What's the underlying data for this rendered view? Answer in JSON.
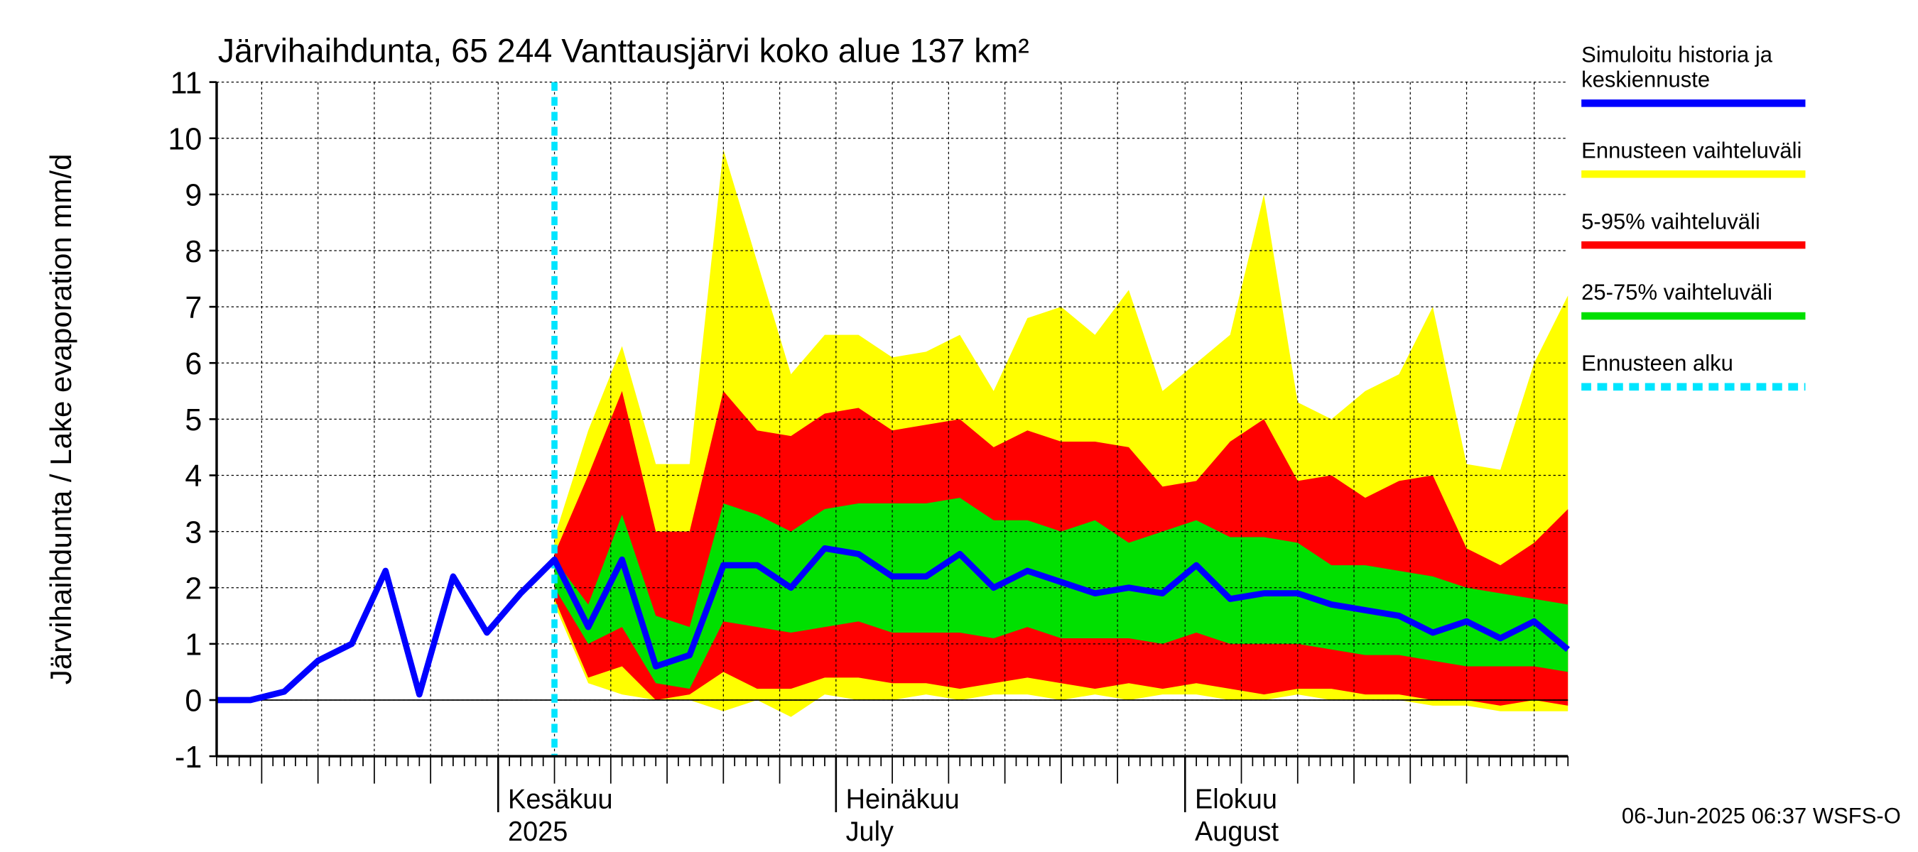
{
  "chart_data": {
    "type": "band-line",
    "title": "Järvihaihdunta, 65 244 Vanttausjärvi koko alue 137 km²",
    "y_label": "Järvihaihdunta / Lake evaporation   mm/d",
    "footer": "06-Jun-2025 06:37 WSFS-O",
    "x": [
      "2025-05-07",
      "2025-05-10",
      "2025-05-13",
      "2025-05-16",
      "2025-05-19",
      "2025-05-22",
      "2025-05-25",
      "2025-05-28",
      "2025-05-31",
      "2025-06-03",
      "2025-06-06",
      "2025-06-09",
      "2025-06-12",
      "2025-06-15",
      "2025-06-18",
      "2025-06-21",
      "2025-06-24",
      "2025-06-27",
      "2025-06-30",
      "2025-07-03",
      "2025-07-06",
      "2025-07-09",
      "2025-07-12",
      "2025-07-15",
      "2025-07-18",
      "2025-07-21",
      "2025-07-24",
      "2025-07-27",
      "2025-07-30",
      "2025-08-02",
      "2025-08-05",
      "2025-08-08",
      "2025-08-11",
      "2025-08-14",
      "2025-08-17",
      "2025-08-20",
      "2025-08-23",
      "2025-08-26",
      "2025-08-29",
      "2025-09-01",
      "2025-09-04"
    ],
    "xlim": [
      "2025-05-07",
      "2025-09-04"
    ],
    "xticks": [
      {
        "value": "2025-06-01",
        "label": "Kesäkuu\n2025"
      },
      {
        "value": "2025-07-01",
        "label": "Heinäkuu\nJuly"
      },
      {
        "value": "2025-08-01",
        "label": "Elokuu\nAugust"
      }
    ],
    "ylim": [
      -1,
      11
    ],
    "yticks": [
      -1,
      0,
      1,
      2,
      3,
      4,
      5,
      6,
      7,
      8,
      9,
      10,
      11
    ],
    "grid": true,
    "bands": [
      {
        "name": "Ennusteen vaihteluväli",
        "color": "#ffff00",
        "low": [
          null,
          null,
          null,
          null,
          null,
          null,
          null,
          null,
          null,
          null,
          1.7,
          0.3,
          0.1,
          0.0,
          0.0,
          -0.2,
          0.0,
          -0.3,
          0.1,
          0.0,
          0.0,
          0.1,
          0.0,
          0.1,
          0.1,
          0.0,
          0.1,
          0.0,
          0.1,
          0.1,
          0.0,
          0.0,
          0.1,
          0.0,
          0.0,
          0.0,
          -0.1,
          -0.1,
          -0.2,
          -0.2,
          -0.2
        ],
        "high": [
          null,
          null,
          null,
          null,
          null,
          null,
          null,
          null,
          null,
          null,
          2.9,
          4.8,
          6.3,
          4.2,
          4.2,
          9.8,
          7.8,
          5.8,
          6.5,
          6.5,
          6.1,
          6.2,
          6.5,
          5.5,
          6.8,
          7.0,
          6.5,
          7.3,
          5.5,
          6.0,
          6.5,
          9.0,
          5.3,
          5.0,
          5.5,
          5.8,
          7.0,
          4.2,
          4.1,
          6.0,
          7.2
        ]
      },
      {
        "name": "5-95% vaihteluväli",
        "color": "#ff0000",
        "low": [
          null,
          null,
          null,
          null,
          null,
          null,
          null,
          null,
          null,
          null,
          1.8,
          0.4,
          0.6,
          0.0,
          0.1,
          0.5,
          0.2,
          0.2,
          0.4,
          0.4,
          0.3,
          0.3,
          0.2,
          0.3,
          0.4,
          0.3,
          0.2,
          0.3,
          0.2,
          0.3,
          0.2,
          0.1,
          0.2,
          0.2,
          0.1,
          0.1,
          0.0,
          0.0,
          -0.1,
          0.0,
          -0.1
        ],
        "high": [
          null,
          null,
          null,
          null,
          null,
          null,
          null,
          null,
          null,
          null,
          2.6,
          4.0,
          5.5,
          3.0,
          3.0,
          5.5,
          4.8,
          4.7,
          5.1,
          5.2,
          4.8,
          4.9,
          5.0,
          4.5,
          4.8,
          4.6,
          4.6,
          4.5,
          3.8,
          3.9,
          4.6,
          5.0,
          3.9,
          4.0,
          3.6,
          3.9,
          4.0,
          2.7,
          2.4,
          2.8,
          3.4
        ]
      },
      {
        "name": "25-75% vaihteluväli",
        "color": "#00e000",
        "low": [
          null,
          null,
          null,
          null,
          null,
          null,
          null,
          null,
          null,
          null,
          2.0,
          1.0,
          1.3,
          0.3,
          0.2,
          1.4,
          1.3,
          1.2,
          1.3,
          1.4,
          1.2,
          1.2,
          1.2,
          1.1,
          1.3,
          1.1,
          1.1,
          1.1,
          1.0,
          1.2,
          1.0,
          1.0,
          1.0,
          0.9,
          0.8,
          0.8,
          0.7,
          0.6,
          0.6,
          0.6,
          0.5
        ],
        "high": [
          null,
          null,
          null,
          null,
          null,
          null,
          null,
          null,
          null,
          null,
          2.5,
          1.7,
          3.3,
          1.5,
          1.3,
          3.5,
          3.3,
          3.0,
          3.4,
          3.5,
          3.5,
          3.5,
          3.6,
          3.2,
          3.2,
          3.0,
          3.2,
          2.8,
          3.0,
          3.2,
          2.9,
          2.9,
          2.8,
          2.4,
          2.4,
          2.3,
          2.2,
          2.0,
          1.9,
          1.8,
          1.7
        ]
      }
    ],
    "series": [
      {
        "name": "Simuloitu historia ja\nkeskiennuste",
        "color": "#0000ff",
        "values": [
          0.0,
          0.0,
          0.15,
          0.7,
          1.0,
          2.3,
          0.1,
          2.2,
          1.2,
          1.9,
          2.5,
          1.3,
          2.5,
          0.6,
          0.8,
          2.4,
          2.4,
          2.0,
          2.7,
          2.6,
          2.2,
          2.2,
          2.6,
          2.0,
          2.3,
          2.1,
          1.9,
          2.0,
          1.9,
          2.4,
          1.8,
          1.9,
          1.9,
          1.7,
          1.6,
          1.5,
          1.2,
          1.4,
          1.1,
          1.4,
          0.9
        ]
      }
    ],
    "forecast_start": {
      "name": "Ennusteen alku",
      "color": "#00e5ff",
      "x": "2025-06-06"
    }
  }
}
